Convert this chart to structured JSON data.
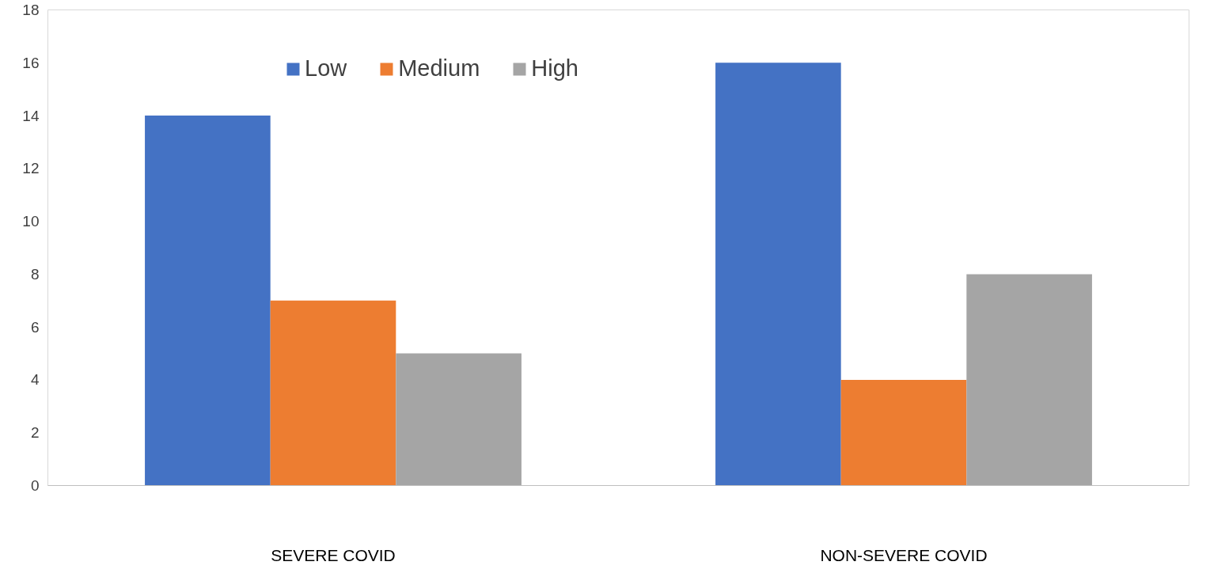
{
  "chart_data": {
    "type": "bar",
    "categories": [
      "SEVERE COVID",
      "NON-SEVERE COVID"
    ],
    "series": [
      {
        "name": "Low",
        "color": "#4472c4",
        "values": [
          14,
          16
        ]
      },
      {
        "name": "Medium",
        "color": "#ed7d31",
        "values": [
          7,
          4
        ]
      },
      {
        "name": "High",
        "color": "#a5a5a5",
        "values": [
          5,
          8
        ]
      }
    ],
    "ylim": [
      0,
      18
    ],
    "yticks": [
      0,
      2,
      4,
      6,
      8,
      10,
      12,
      14,
      16,
      18
    ],
    "grid": false,
    "legend": "top"
  }
}
